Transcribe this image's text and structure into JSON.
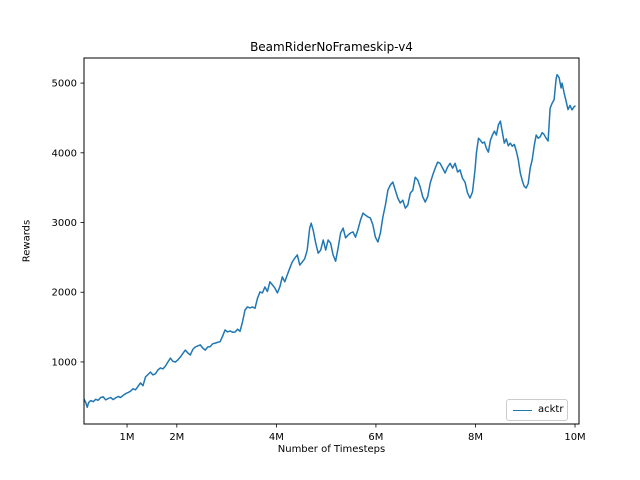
{
  "figure": {
    "title": "BeamRiderNoFrameskip-v4",
    "xlabel": "Number of Timesteps",
    "ylabel": "Rewards"
  },
  "legend": {
    "entries": [
      {
        "label": "acktr",
        "color": "#1f77b4"
      }
    ]
  },
  "chart_data": {
    "type": "line",
    "title": "BeamRiderNoFrameskip-v4",
    "xlabel": "Number of Timesteps",
    "ylabel": "Rewards",
    "x_unit": "millions of timesteps",
    "xlim": [
      0.135,
      10.08
    ],
    "ylim": [
      110,
      5360
    ],
    "x_ticks": [
      {
        "value": 1,
        "label": "1M"
      },
      {
        "value": 2,
        "label": "2M"
      },
      {
        "value": 4,
        "label": "4M"
      },
      {
        "value": 6,
        "label": "6M"
      },
      {
        "value": 8,
        "label": "8M"
      },
      {
        "value": 10,
        "label": "10M"
      }
    ],
    "y_ticks": [
      {
        "value": 1000,
        "label": "1000"
      },
      {
        "value": 2000,
        "label": "2000"
      },
      {
        "value": 3000,
        "label": "3000"
      },
      {
        "value": 4000,
        "label": "4000"
      },
      {
        "value": 5000,
        "label": "5000"
      }
    ],
    "grid": false,
    "legend_position": "lower right",
    "series": [
      {
        "name": "acktr",
        "color": "#1f77b4",
        "x": [
          0.14,
          0.17,
          0.2,
          0.23,
          0.27,
          0.32,
          0.37,
          0.42,
          0.47,
          0.52,
          0.57,
          0.62,
          0.67,
          0.72,
          0.77,
          0.82,
          0.87,
          0.92,
          0.97,
          1.02,
          1.07,
          1.12,
          1.17,
          1.22,
          1.27,
          1.32,
          1.37,
          1.42,
          1.47,
          1.52,
          1.57,
          1.62,
          1.67,
          1.72,
          1.77,
          1.82,
          1.87,
          1.92,
          1.97,
          2.02,
          2.07,
          2.12,
          2.17,
          2.22,
          2.27,
          2.32,
          2.37,
          2.42,
          2.47,
          2.52,
          2.57,
          2.62,
          2.67,
          2.72,
          2.77,
          2.82,
          2.87,
          2.92,
          2.97,
          3.02,
          3.07,
          3.12,
          3.17,
          3.22,
          3.27,
          3.32,
          3.37,
          3.42,
          3.47,
          3.52,
          3.57,
          3.62,
          3.67,
          3.72,
          3.77,
          3.82,
          3.87,
          3.92,
          3.97,
          4.02,
          4.07,
          4.12,
          4.17,
          4.22,
          4.27,
          4.32,
          4.37,
          4.42,
          4.47,
          4.52,
          4.57,
          4.62,
          4.67,
          4.7,
          4.74,
          4.79,
          4.84,
          4.89,
          4.94,
          4.99,
          5.04,
          5.09,
          5.14,
          5.19,
          5.24,
          5.29,
          5.34,
          5.39,
          5.44,
          5.49,
          5.54,
          5.59,
          5.64,
          5.69,
          5.74,
          5.79,
          5.84,
          5.89,
          5.94,
          5.99,
          6.04,
          6.09,
          6.14,
          6.19,
          6.24,
          6.29,
          6.34,
          6.39,
          6.44,
          6.49,
          6.54,
          6.59,
          6.64,
          6.69,
          6.74,
          6.79,
          6.84,
          6.89,
          6.94,
          6.99,
          7.04,
          7.09,
          7.14,
          7.19,
          7.24,
          7.29,
          7.34,
          7.39,
          7.44,
          7.49,
          7.54,
          7.59,
          7.64,
          7.69,
          7.74,
          7.79,
          7.84,
          7.89,
          7.94,
          7.99,
          8.02,
          8.06,
          8.1,
          8.14,
          8.18,
          8.22,
          8.26,
          8.3,
          8.34,
          8.38,
          8.42,
          8.46,
          8.5,
          8.54,
          8.58,
          8.62,
          8.66,
          8.7,
          8.74,
          8.78,
          8.82,
          8.86,
          8.9,
          8.94,
          8.98,
          9.02,
          9.06,
          9.1,
          9.14,
          9.18,
          9.22,
          9.26,
          9.3,
          9.34,
          9.38,
          9.42,
          9.46,
          9.5,
          9.54,
          9.58,
          9.62,
          9.64,
          9.68,
          9.72,
          9.74,
          9.78,
          9.82,
          9.86,
          9.9,
          9.94,
          9.98,
          10.0
        ],
        "y": [
          465,
          420,
          350,
          420,
          445,
          430,
          465,
          450,
          490,
          500,
          455,
          475,
          490,
          460,
          485,
          505,
          490,
          520,
          545,
          560,
          580,
          615,
          600,
          650,
          700,
          660,
          785,
          820,
          855,
          815,
          830,
          885,
          915,
          900,
          940,
          1000,
          1055,
          1010,
          1000,
          1030,
          1070,
          1120,
          1170,
          1130,
          1100,
          1180,
          1215,
          1230,
          1245,
          1200,
          1170,
          1215,
          1220,
          1260,
          1270,
          1280,
          1290,
          1370,
          1460,
          1430,
          1445,
          1425,
          1430,
          1470,
          1440,
          1575,
          1745,
          1790,
          1775,
          1790,
          1770,
          1915,
          2005,
          1990,
          2075,
          2010,
          2150,
          2105,
          2060,
          1990,
          2080,
          2220,
          2150,
          2250,
          2345,
          2435,
          2490,
          2535,
          2390,
          2435,
          2480,
          2605,
          2920,
          2990,
          2890,
          2705,
          2560,
          2605,
          2750,
          2605,
          2750,
          2705,
          2535,
          2445,
          2635,
          2850,
          2920,
          2780,
          2820,
          2850,
          2865,
          2790,
          2900,
          3035,
          3135,
          3105,
          3080,
          3065,
          2965,
          2790,
          2720,
          2850,
          3080,
          3250,
          3465,
          3540,
          3580,
          3465,
          3350,
          3280,
          3320,
          3205,
          3250,
          3420,
          3465,
          3650,
          3610,
          3510,
          3370,
          3295,
          3370,
          3565,
          3680,
          3780,
          3865,
          3850,
          3780,
          3710,
          3795,
          3850,
          3780,
          3850,
          3725,
          3755,
          3635,
          3580,
          3425,
          3350,
          3440,
          3755,
          4010,
          4210,
          4180,
          4140,
          4155,
          4065,
          4010,
          4180,
          4255,
          4310,
          4255,
          4400,
          4455,
          4300,
          4140,
          4200,
          4100,
          4140,
          4095,
          4120,
          4025,
          3900,
          3710,
          3600,
          3520,
          3495,
          3560,
          3780,
          3900,
          4100,
          4255,
          4210,
          4230,
          4290,
          4260,
          4210,
          4170,
          4640,
          4710,
          4760,
          5060,
          5120,
          5080,
          4930,
          5000,
          4860,
          4740,
          4620,
          4680,
          4615,
          4660,
          4670
        ]
      }
    ]
  }
}
